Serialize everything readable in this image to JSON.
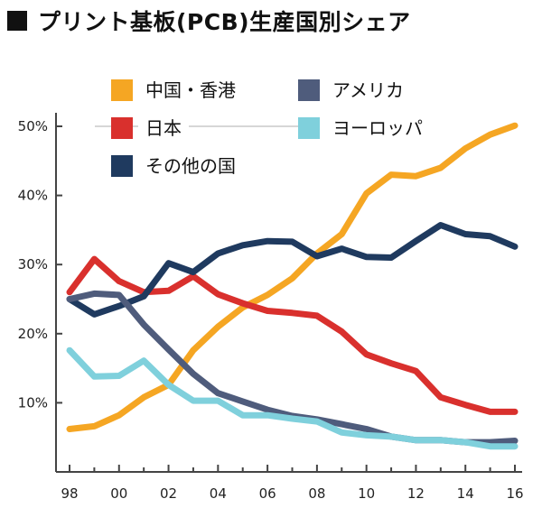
{
  "title": "プリント基板(PCB)生産国別シェア",
  "chart_data": {
    "type": "line",
    "title": "プリント基板(PCB)生産国別シェア",
    "x_labels": [
      "98",
      "00",
      "02",
      "04",
      "06",
      "08",
      "10",
      "12",
      "14",
      "16"
    ],
    "x": [
      1998,
      1999,
      2000,
      2001,
      2002,
      2003,
      2004,
      2005,
      2006,
      2007,
      2008,
      2009,
      2010,
      2011,
      2012,
      2013,
      2014,
      2015,
      2016
    ],
    "xlim": [
      1998,
      2016
    ],
    "ylim": [
      0,
      50
    ],
    "y_ticks": [
      10,
      20,
      30,
      40,
      50
    ],
    "y_tick_labels": [
      "10%",
      "20%",
      "30%",
      "40%",
      "50%"
    ],
    "grid": false,
    "legend_placement": "top-left",
    "series": [
      {
        "name": "中国・香港",
        "color": "#f5a623",
        "values": [
          6.2,
          6.6,
          8.2,
          10.8,
          12.6,
          17.6,
          21.0,
          23.8,
          25.6,
          28.0,
          31.6,
          34.4,
          40.3,
          43.0,
          42.8,
          44.0,
          46.8,
          48.8,
          50.1
        ]
      },
      {
        "name": "日本",
        "color": "#d9302d",
        "values": [
          26.0,
          30.8,
          27.6,
          26.0,
          26.2,
          28.3,
          25.7,
          24.4,
          23.3,
          23.0,
          22.6,
          20.3,
          17.0,
          15.7,
          14.6,
          10.8,
          9.7,
          8.7,
          8.7
        ]
      },
      {
        "name": "その他の国",
        "color": "#1f3a5f",
        "values": [
          25.0,
          22.8,
          24.0,
          25.4,
          30.2,
          28.9,
          31.6,
          32.8,
          33.4,
          33.3,
          31.2,
          32.3,
          31.1,
          31.0,
          33.4,
          35.7,
          34.4,
          34.1,
          32.6
        ]
      },
      {
        "name": "アメリカ",
        "color": "#4f5c7c",
        "values": [
          25.0,
          25.8,
          25.6,
          21.3,
          17.7,
          14.2,
          11.4,
          10.2,
          9.0,
          8.1,
          7.6,
          6.9,
          6.2,
          5.1,
          4.6,
          4.6,
          4.3,
          4.3,
          4.5
        ]
      },
      {
        "name": "ヨーロッパ",
        "color": "#7fd0dc",
        "values": [
          17.6,
          13.8,
          13.9,
          16.1,
          12.6,
          10.3,
          10.3,
          8.2,
          8.2,
          7.7,
          7.3,
          5.7,
          5.3,
          5.1,
          4.6,
          4.6,
          4.3,
          3.7,
          3.7
        ]
      }
    ],
    "legend": [
      {
        "series": "中国・香港",
        "row": 0,
        "col": 0
      },
      {
        "series": "アメリカ",
        "row": 0,
        "col": 1
      },
      {
        "series": "日本",
        "row": 1,
        "col": 0
      },
      {
        "series": "ヨーロッパ",
        "row": 1,
        "col": 1
      },
      {
        "series": "その他の国",
        "row": 2,
        "col": 0
      }
    ]
  }
}
